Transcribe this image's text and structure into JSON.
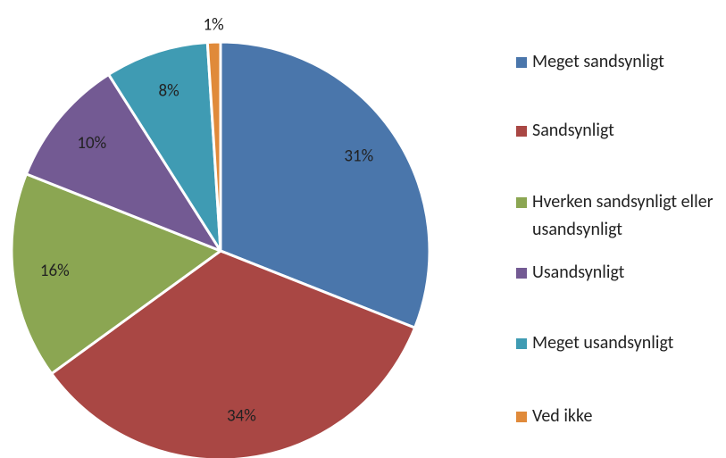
{
  "chart_data": {
    "type": "pie",
    "categories": [
      "Meget sandsynligt",
      "Sandsynligt",
      "Hverken sandsynligt eller usandsynligt",
      "Usandsynligt",
      "Meget usandsynligt",
      "Ved ikke"
    ],
    "values": [
      31,
      34,
      16,
      10,
      8,
      1
    ],
    "value_labels": [
      "31%",
      "34%",
      "16%",
      "10%",
      "8%",
      "1%"
    ],
    "colors": [
      "#4a76ab",
      "#a94744",
      "#8ba652",
      "#735a93",
      "#3f9bb3",
      "#e08a3a"
    ],
    "legend": "right"
  }
}
